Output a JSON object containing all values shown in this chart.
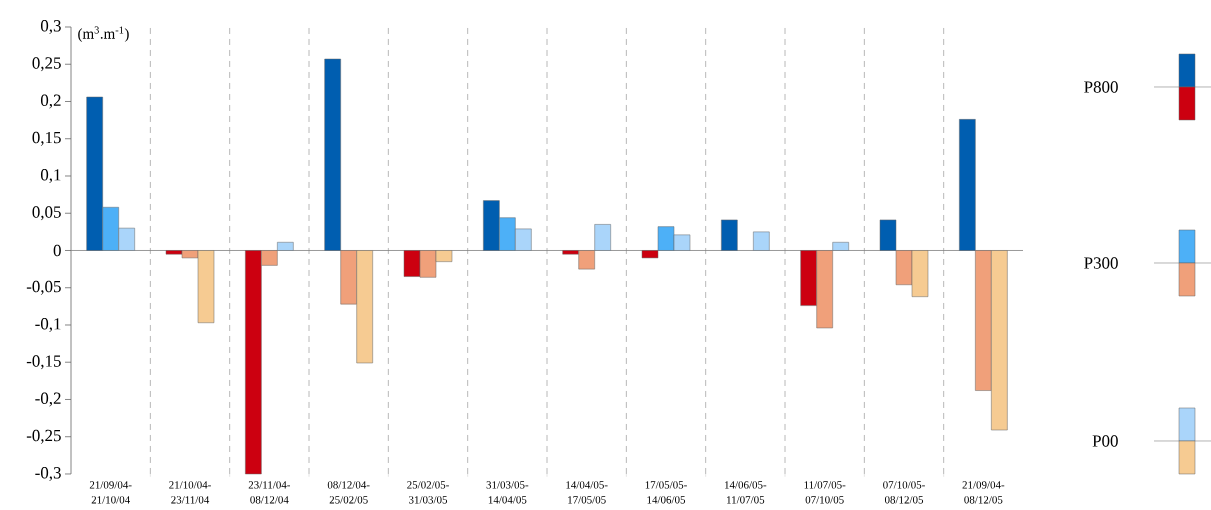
{
  "chart_data": {
    "type": "bar",
    "ylabel": "(m$^{3}$.m$^{-1}$)",
    "categories": [
      "21/09/04-21/10/04",
      "21/10/04-23/11/04",
      "23/11/04-08/12/04",
      "08/12/04-25/02/05",
      "25/02/05-31/03/05",
      "31/03/05-14/04/05",
      "14/04/05-17/05/05",
      "17/05/05-14/06/05",
      "14/06/05-11/07/05",
      "11/07/05-07/10/05",
      "07/10/05-08/12/05",
      "21/09/04-08/12/05"
    ],
    "series": [
      {
        "name": "P800",
        "values": [
          0.206,
          -0.005,
          -0.3,
          0.257,
          -0.035,
          0.067,
          -0.005,
          -0.01,
          0.041,
          -0.074,
          0.041,
          0.176
        ],
        "colors": [
          "#005eb0",
          "#cc0010",
          "#cc0010",
          "#005eb0",
          "#cc0010",
          "#005eb0",
          "#cc0010",
          "#cc0010",
          "#005eb0",
          "#cc0010",
          "#005eb0",
          "#005eb0"
        ]
      },
      {
        "name": "P300",
        "values": [
          0.058,
          -0.01,
          -0.02,
          -0.072,
          -0.036,
          0.044,
          -0.025,
          0.032,
          null,
          -0.104,
          -0.046,
          -0.188
        ],
        "colors": [
          "#4db0f7",
          "#f0a07a",
          "#f0a07a",
          "#f0a07a",
          "#f0a07a",
          "#4db0f7",
          "#f0a07a",
          "#4db0f7",
          "#4db0f7",
          "#f0a07a",
          "#f0a07a",
          "#f0a07a"
        ]
      },
      {
        "name": "P00",
        "values": [
          0.03,
          -0.097,
          0.011,
          -0.151,
          -0.015,
          0.029,
          0.035,
          0.021,
          0.025,
          0.011,
          -0.062,
          -0.241
        ],
        "colors": [
          "#aad5fa",
          "#f6cb92",
          "#aad5fa",
          "#f6cb92",
          "#f6cb92",
          "#aad5fa",
          "#aad5fa",
          "#aad5fa",
          "#aad5fa",
          "#aad5fa",
          "#f6cb92",
          "#f6cb92"
        ]
      }
    ],
    "ylim": [
      -0.3,
      0.3
    ],
    "yticks": [
      {
        "value": -0.3,
        "label": "-0,3"
      },
      {
        "value": -0.25,
        "label": "-0,25"
      },
      {
        "value": -0.2,
        "label": "-0,2"
      },
      {
        "value": -0.15,
        "label": "-0,15"
      },
      {
        "value": -0.1,
        "label": "-0,1"
      },
      {
        "value": -0.05,
        "label": "-0,05"
      },
      0,
      {
        "value": 0.05,
        "label": "0,05"
      },
      {
        "value": 0.1,
        "label": "0,1"
      },
      {
        "value": 0.15,
        "label": "0,15"
      },
      {
        "value": 0.2,
        "label": "0,2"
      },
      {
        "value": 0.25,
        "label": "0,25"
      },
      {
        "value": 0.3,
        "label": "0,3"
      }
    ],
    "grid": "x",
    "legend": "right"
  }
}
